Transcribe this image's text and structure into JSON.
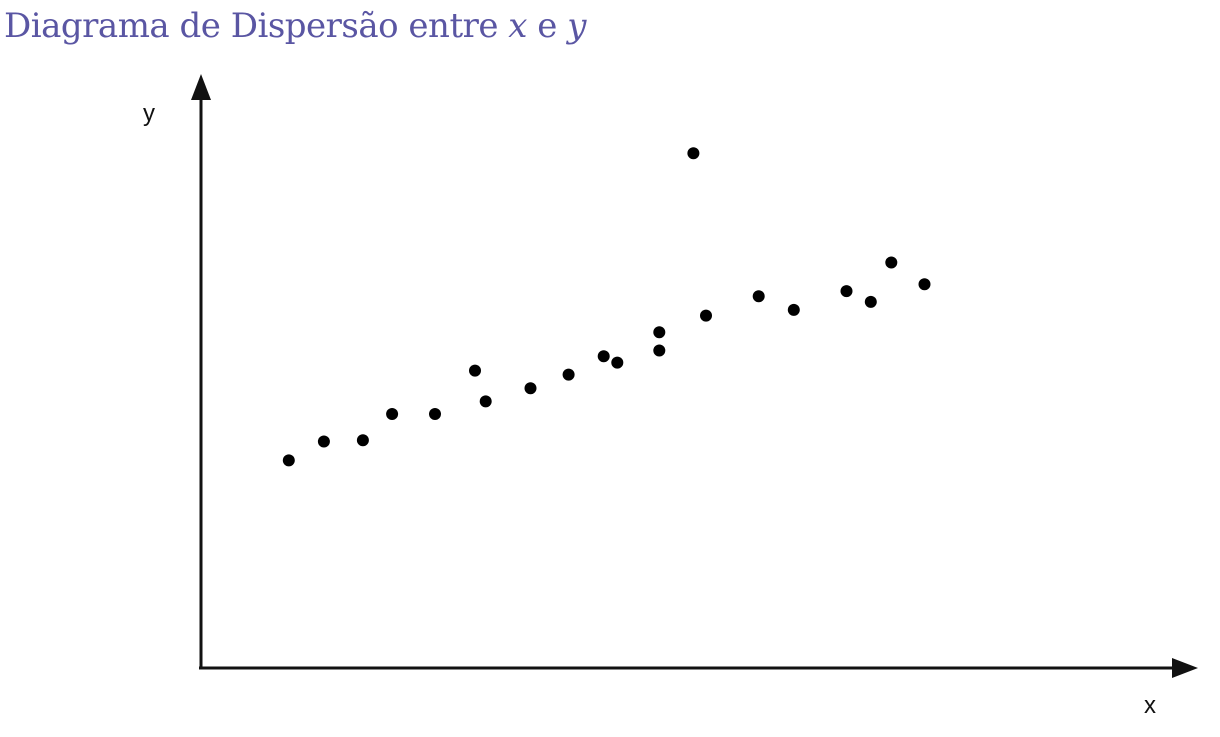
{
  "title": {
    "prefix": "Diagrama de Dispersão entre ",
    "var_x": "x",
    "conjunction": " e ",
    "var_y": "y"
  },
  "colors": {
    "title": "#5a56a3",
    "axis": "#111111",
    "points": "#000000"
  },
  "chart_data": {
    "type": "scatter",
    "title": "Diagrama de Dispersão entre x e y",
    "xlabel": "x",
    "ylabel": "y",
    "grid": false,
    "legend": "none",
    "xlim": [
      0,
      100
    ],
    "ylim": [
      0,
      100
    ],
    "series": [
      {
        "points": [
          {
            "x": 9.0,
            "y": 36.3
          },
          {
            "x": 12.6,
            "y": 39.6
          },
          {
            "x": 16.6,
            "y": 39.8
          },
          {
            "x": 19.6,
            "y": 44.4
          },
          {
            "x": 24.0,
            "y": 44.4
          },
          {
            "x": 28.1,
            "y": 52.0
          },
          {
            "x": 29.2,
            "y": 46.6
          },
          {
            "x": 33.8,
            "y": 48.9
          },
          {
            "x": 37.7,
            "y": 51.3
          },
          {
            "x": 41.3,
            "y": 54.5
          },
          {
            "x": 42.7,
            "y": 53.4
          },
          {
            "x": 47.0,
            "y": 58.7
          },
          {
            "x": 47.0,
            "y": 55.5
          },
          {
            "x": 50.5,
            "y": 90.0
          },
          {
            "x": 51.8,
            "y": 61.6
          },
          {
            "x": 57.2,
            "y": 65.0
          },
          {
            "x": 60.8,
            "y": 62.6
          },
          {
            "x": 66.2,
            "y": 65.9
          },
          {
            "x": 68.7,
            "y": 64.0
          },
          {
            "x": 70.8,
            "y": 70.9
          },
          {
            "x": 74.2,
            "y": 67.1
          }
        ]
      }
    ]
  }
}
